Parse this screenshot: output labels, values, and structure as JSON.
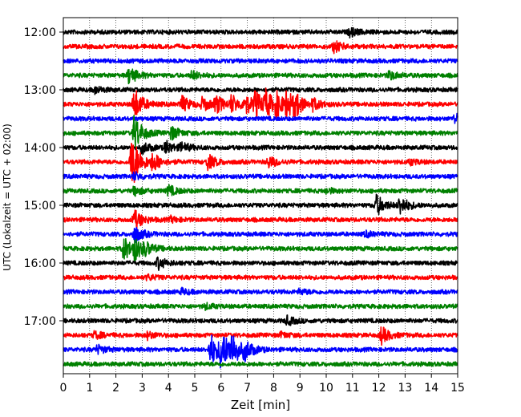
{
  "chart_data": {
    "type": "line",
    "xlabel": "Zeit  [min]",
    "ylabel": "UTC (Lokalzeit = UTC + 02:00)",
    "xlim": [
      0,
      15
    ],
    "x_ticks": [
      "0",
      "1",
      "2",
      "3",
      "4",
      "5",
      "6",
      "7",
      "8",
      "9",
      "10",
      "11",
      "12",
      "13",
      "14",
      "15"
    ],
    "y_ticks": [
      "12:00",
      "13:00",
      "14:00",
      "15:00",
      "16:00",
      "17:00"
    ],
    "grid": "vertical dotted",
    "trace_colors": [
      "#000000",
      "#ff0000",
      "#0000ff",
      "#008000"
    ],
    "series": [
      {
        "start": "12:00",
        "color": "#000000",
        "events": [
          {
            "t": 10.9,
            "amp": 5
          }
        ]
      },
      {
        "start": "12:15",
        "color": "#ff0000",
        "events": [
          {
            "t": 10.3,
            "amp": 7
          }
        ]
      },
      {
        "start": "12:30",
        "color": "#0000ff",
        "events": []
      },
      {
        "start": "12:45",
        "color": "#008000",
        "events": [
          {
            "t": 2.5,
            "amp": 10
          },
          {
            "t": 4.9,
            "amp": 5
          },
          {
            "t": 12.4,
            "amp": 5
          }
        ]
      },
      {
        "start": "13:00",
        "color": "#000000",
        "events": [
          {
            "t": 1.2,
            "amp": 4
          }
        ]
      },
      {
        "start": "13:15",
        "color": "#ff0000",
        "events": [
          {
            "t": 2.7,
            "amp": 20
          },
          {
            "t": 4.5,
            "amp": 10
          },
          {
            "t": 5.3,
            "amp": 8
          },
          {
            "t": 5.8,
            "amp": 10
          },
          {
            "t": 6.4,
            "amp": 10
          },
          {
            "t": 6.9,
            "amp": 12
          },
          {
            "t": 7.3,
            "amp": 14
          },
          {
            "t": 7.7,
            "amp": 14
          },
          {
            "t": 8.1,
            "amp": 12
          },
          {
            "t": 8.5,
            "amp": 14
          },
          {
            "t": 8.8,
            "amp": 12
          },
          {
            "t": 9.5,
            "amp": 6
          }
        ]
      },
      {
        "start": "13:30",
        "color": "#0000ff",
        "events": [
          {
            "t": 14.9,
            "amp": 6
          }
        ]
      },
      {
        "start": "13:45",
        "color": "#008000",
        "events": [
          {
            "t": 2.7,
            "amp": 22
          },
          {
            "t": 4.1,
            "amp": 8
          }
        ]
      },
      {
        "start": "14:00",
        "color": "#000000",
        "events": [
          {
            "t": 3.0,
            "amp": 7
          },
          {
            "t": 3.9,
            "amp": 8
          },
          {
            "t": 4.5,
            "amp": 5
          }
        ]
      },
      {
        "start": "14:15",
        "color": "#ff0000",
        "events": [
          {
            "t": 2.6,
            "amp": 34
          },
          {
            "t": 3.4,
            "amp": 10
          },
          {
            "t": 5.5,
            "amp": 9
          },
          {
            "t": 7.8,
            "amp": 7
          },
          {
            "t": 13.2,
            "amp": 3
          }
        ]
      },
      {
        "start": "14:30",
        "color": "#0000ff",
        "events": [
          {
            "t": 2.7,
            "amp": 4
          }
        ]
      },
      {
        "start": "14:45",
        "color": "#008000",
        "events": [
          {
            "t": 2.7,
            "amp": 5
          },
          {
            "t": 4.0,
            "amp": 6
          },
          {
            "t": 10.0,
            "amp": 3
          }
        ]
      },
      {
        "start": "15:00",
        "color": "#000000",
        "events": [
          {
            "t": 11.9,
            "amp": 13
          },
          {
            "t": 12.8,
            "amp": 11
          }
        ]
      },
      {
        "start": "15:15",
        "color": "#ff0000",
        "events": [
          {
            "t": 2.7,
            "amp": 12
          },
          {
            "t": 4.1,
            "amp": 3
          }
        ]
      },
      {
        "start": "15:30",
        "color": "#0000ff",
        "events": [
          {
            "t": 2.7,
            "amp": 10
          },
          {
            "t": 11.5,
            "amp": 3
          }
        ]
      },
      {
        "start": "15:45",
        "color": "#008000",
        "events": [
          {
            "t": 2.3,
            "amp": 14
          },
          {
            "t": 2.7,
            "amp": 12
          },
          {
            "t": 3.1,
            "amp": 6
          }
        ]
      },
      {
        "start": "16:00",
        "color": "#000000",
        "events": [
          {
            "t": 3.6,
            "amp": 7
          }
        ]
      },
      {
        "start": "16:15",
        "color": "#ff0000",
        "events": [
          {
            "t": 3.2,
            "amp": 3
          }
        ]
      },
      {
        "start": "16:30",
        "color": "#0000ff",
        "events": [
          {
            "t": 4.5,
            "amp": 3
          },
          {
            "t": 9.0,
            "amp": 3
          }
        ]
      },
      {
        "start": "16:45",
        "color": "#008000",
        "events": [
          {
            "t": 5.4,
            "amp": 3
          }
        ]
      },
      {
        "start": "17:00",
        "color": "#000000",
        "events": [
          {
            "t": 8.5,
            "amp": 5
          }
        ]
      },
      {
        "start": "17:15",
        "color": "#ff0000",
        "events": [
          {
            "t": 1.2,
            "amp": 4
          },
          {
            "t": 3.2,
            "amp": 4
          },
          {
            "t": 12.1,
            "amp": 10
          },
          {
            "t": 8.3,
            "amp": 3
          }
        ]
      },
      {
        "start": "17:30",
        "color": "#0000ff",
        "events": [
          {
            "t": 1.3,
            "amp": 5
          },
          {
            "t": 5.6,
            "amp": 20
          },
          {
            "t": 6.0,
            "amp": 22
          },
          {
            "t": 6.4,
            "amp": 18
          },
          {
            "t": 6.9,
            "amp": 10
          }
        ]
      },
      {
        "start": "17:45",
        "color": "#008000",
        "events": []
      }
    ]
  }
}
